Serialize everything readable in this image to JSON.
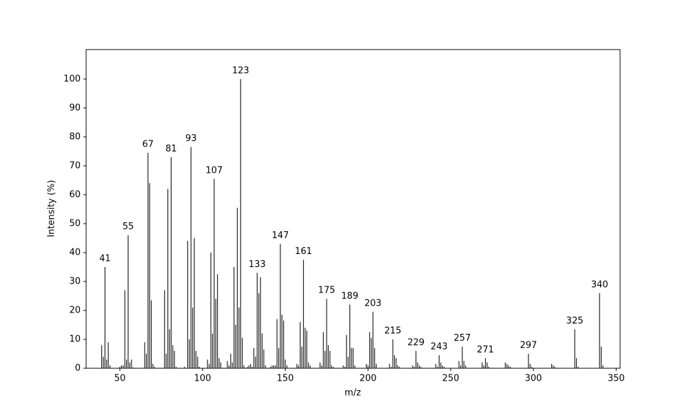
{
  "chart_data": {
    "type": "spectrum",
    "x_label": "m/z",
    "y_label": "Intensity (%)",
    "color": "#222222",
    "xlim": [
      29.6,
      352.4
    ],
    "ylim": [
      0,
      110.2
    ],
    "xticks": [
      50,
      100,
      150,
      200,
      250,
      300,
      350
    ],
    "yticks": [
      0,
      10,
      20,
      30,
      40,
      50,
      60,
      70,
      80,
      90,
      100
    ],
    "x": [
      39,
      40,
      41,
      42,
      43,
      44,
      50,
      51,
      52,
      53,
      54,
      55,
      56,
      57,
      58,
      65,
      66,
      67,
      68,
      69,
      70,
      71,
      77,
      78,
      79,
      80,
      81,
      82,
      83,
      84,
      89,
      91,
      92,
      93,
      94,
      95,
      96,
      97,
      98,
      103,
      104,
      105,
      106,
      107,
      108,
      109,
      110,
      111,
      115,
      116,
      117,
      118,
      119,
      120,
      121,
      122,
      123,
      124,
      125,
      127,
      128,
      129,
      130,
      131,
      132,
      133,
      134,
      135,
      136,
      137,
      138,
      141,
      142,
      143,
      144,
      145,
      146,
      147,
      148,
      149,
      150,
      151,
      157,
      158,
      159,
      160,
      161,
      162,
      163,
      164,
      165,
      171,
      172,
      173,
      174,
      175,
      176,
      177,
      178,
      179,
      185,
      186,
      187,
      188,
      189,
      190,
      191,
      192,
      199,
      200,
      201,
      202,
      203,
      204,
      205,
      213,
      214,
      215,
      216,
      217,
      218,
      219,
      227,
      228,
      229,
      230,
      231,
      232,
      241,
      242,
      243,
      244,
      245,
      246,
      255,
      256,
      257,
      258,
      259,
      269,
      270,
      271,
      272,
      273,
      283,
      284,
      285,
      286,
      297,
      298,
      299,
      311,
      312,
      313,
      325,
      326,
      327,
      340,
      341,
      342
    ],
    "values": [
      8,
      4,
      35,
      3,
      9,
      1,
      0.5,
      1,
      1,
      27,
      3,
      46,
      2,
      3,
      0.3,
      9,
      5,
      74.5,
      64,
      23.5,
      1.5,
      0.5,
      27,
      5,
      62,
      13.5,
      73,
      8,
      6,
      0.5,
      0.5,
      44,
      10,
      76.5,
      21,
      45,
      6,
      4,
      0.5,
      3,
      1.5,
      40,
      12,
      65.5,
      24,
      32.5,
      3.5,
      2,
      2.5,
      1,
      5,
      2,
      35,
      15,
      55.5,
      21,
      100,
      10.5,
      1,
      0.5,
      1,
      1.5,
      0.5,
      7,
      4,
      33,
      26,
      31.5,
      12,
      6.5,
      1,
      0.5,
      1,
      1,
      1,
      17,
      7,
      43,
      18.5,
      16.5,
      3,
      1,
      1.5,
      1,
      16,
      7.5,
      37.5,
      14,
      13,
      2,
      1,
      2,
      1,
      12.5,
      6,
      24,
      8,
      6,
      1,
      0.5,
      1,
      0.5,
      11.5,
      4,
      22,
      7,
      7,
      1,
      1.5,
      1,
      12.5,
      10.5,
      19.5,
      7,
      1.5,
      1.5,
      0.5,
      10,
      4.5,
      3.5,
      1,
      0.5,
      1,
      0.5,
      6,
      2,
      1,
      0.5,
      1.5,
      0.5,
      4.5,
      2,
      1,
      0.5,
      2.5,
      1,
      7.5,
      2.5,
      1,
      2,
      1,
      3.5,
      2,
      0.5,
      2,
      1.5,
      1,
      0.5,
      5,
      1.5,
      0.5,
      1.5,
      1,
      0.5,
      13.5,
      3.5,
      0.5,
      26,
      7.5,
      1
    ],
    "labels": [
      41,
      55,
      67,
      81,
      93,
      107,
      123,
      133,
      147,
      161,
      175,
      189,
      203,
      215,
      229,
      243,
      257,
      271,
      297,
      325,
      340
    ]
  }
}
